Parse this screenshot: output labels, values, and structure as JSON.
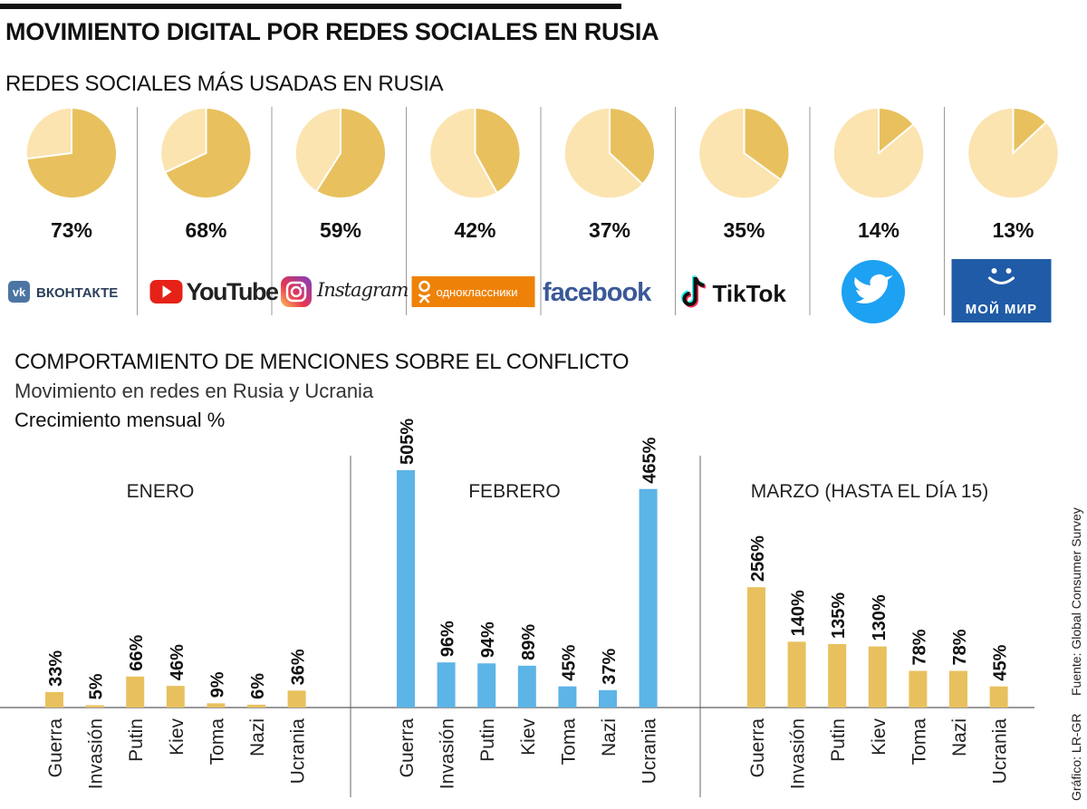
{
  "header": {
    "title": "MOVIMIENTO DIGITAL POR REDES SOCIALES EN RUSIA",
    "section1_title": "REDES SOCIALES MÁS USADAS EN RUSIA"
  },
  "colors": {
    "pie_main": "#e8c15e",
    "pie_rest": "#fbe4b0",
    "bar_gold": "#e8c15e",
    "bar_blue": "#5db4e6",
    "vk": "#4c75a3",
    "youtube": "#e62117",
    "odnoklassniki": "#ee8208",
    "facebook": "#3b5998",
    "twitter": "#1da1f2",
    "moimir": "#1f5ba6"
  },
  "social_networks": [
    {
      "name": "ВКОНТАКТЕ",
      "value_label": "73%",
      "icon": "vk-logo"
    },
    {
      "name": "YouTube",
      "value_label": "68%",
      "icon": "youtube-logo"
    },
    {
      "name": "Instagram",
      "value_label": "59%",
      "icon": "instagram-logo"
    },
    {
      "name": "одноклассники",
      "value_label": "42%",
      "icon": "odnoklassniki-logo"
    },
    {
      "name": "facebook",
      "value_label": "37%",
      "icon": "facebook-logo"
    },
    {
      "name": "TikTok",
      "value_label": "35%",
      "icon": "tiktok-logo"
    },
    {
      "name": "Twitter",
      "value_label": "14%",
      "icon": "twitter-logo"
    },
    {
      "name": "МОЙ МИР",
      "value_label": "13%",
      "icon": "moimir-logo"
    }
  ],
  "section2": {
    "title": "COMPORTAMIENTO DE MENCIONES SOBRE EL CONFLICTO",
    "subtitle": "Movimiento en redes en Rusia y Ucrania",
    "measure": "Crecimiento mensual %"
  },
  "footer": {
    "source": "Fuente: Global Consumer Survey",
    "credit": "Gráfico: LR-GR"
  },
  "chart_data": [
    {
      "type": "pie",
      "title": "REDES SOCIALES MÁS USADAS EN RUSIA",
      "categories": [
        "ВКонтакте",
        "YouTube",
        "Instagram",
        "Одноклассники",
        "Facebook",
        "TikTok",
        "Twitter",
        "Мой Мир"
      ],
      "values": [
        73,
        68,
        59,
        42,
        37,
        35,
        14,
        13
      ],
      "unit": "%"
    },
    {
      "type": "bar",
      "title": "COMPORTAMIENTO DE MENCIONES SOBRE EL CONFLICTO",
      "ylabel": "Crecimiento mensual %",
      "ylim": [
        0,
        505
      ],
      "categories": [
        "Guerra",
        "Invasión",
        "Putin",
        "Kiev",
        "Toma",
        "Nazi",
        "Ucrania"
      ],
      "series": [
        {
          "name": "ENERO",
          "values": [
            33,
            5,
            66,
            46,
            9,
            6,
            36
          ],
          "labels": [
            "33%",
            "5%",
            "66%",
            "46%",
            "9%",
            "6%",
            "36%"
          ],
          "color": "gold"
        },
        {
          "name": "FEBRERO",
          "values": [
            505,
            96,
            94,
            89,
            45,
            37,
            465
          ],
          "labels": [
            "505%",
            "96%",
            "94%",
            "89%",
            "45%",
            "37%",
            "465%"
          ],
          "color": "blue"
        },
        {
          "name": "MARZO (HASTA EL DÍA 15)",
          "values": [
            256,
            140,
            135,
            130,
            78,
            78,
            45
          ],
          "labels": [
            "256%",
            "140%",
            "135%",
            "130%",
            "78%",
            "78%",
            "45%"
          ],
          "color": "gold"
        }
      ]
    }
  ]
}
